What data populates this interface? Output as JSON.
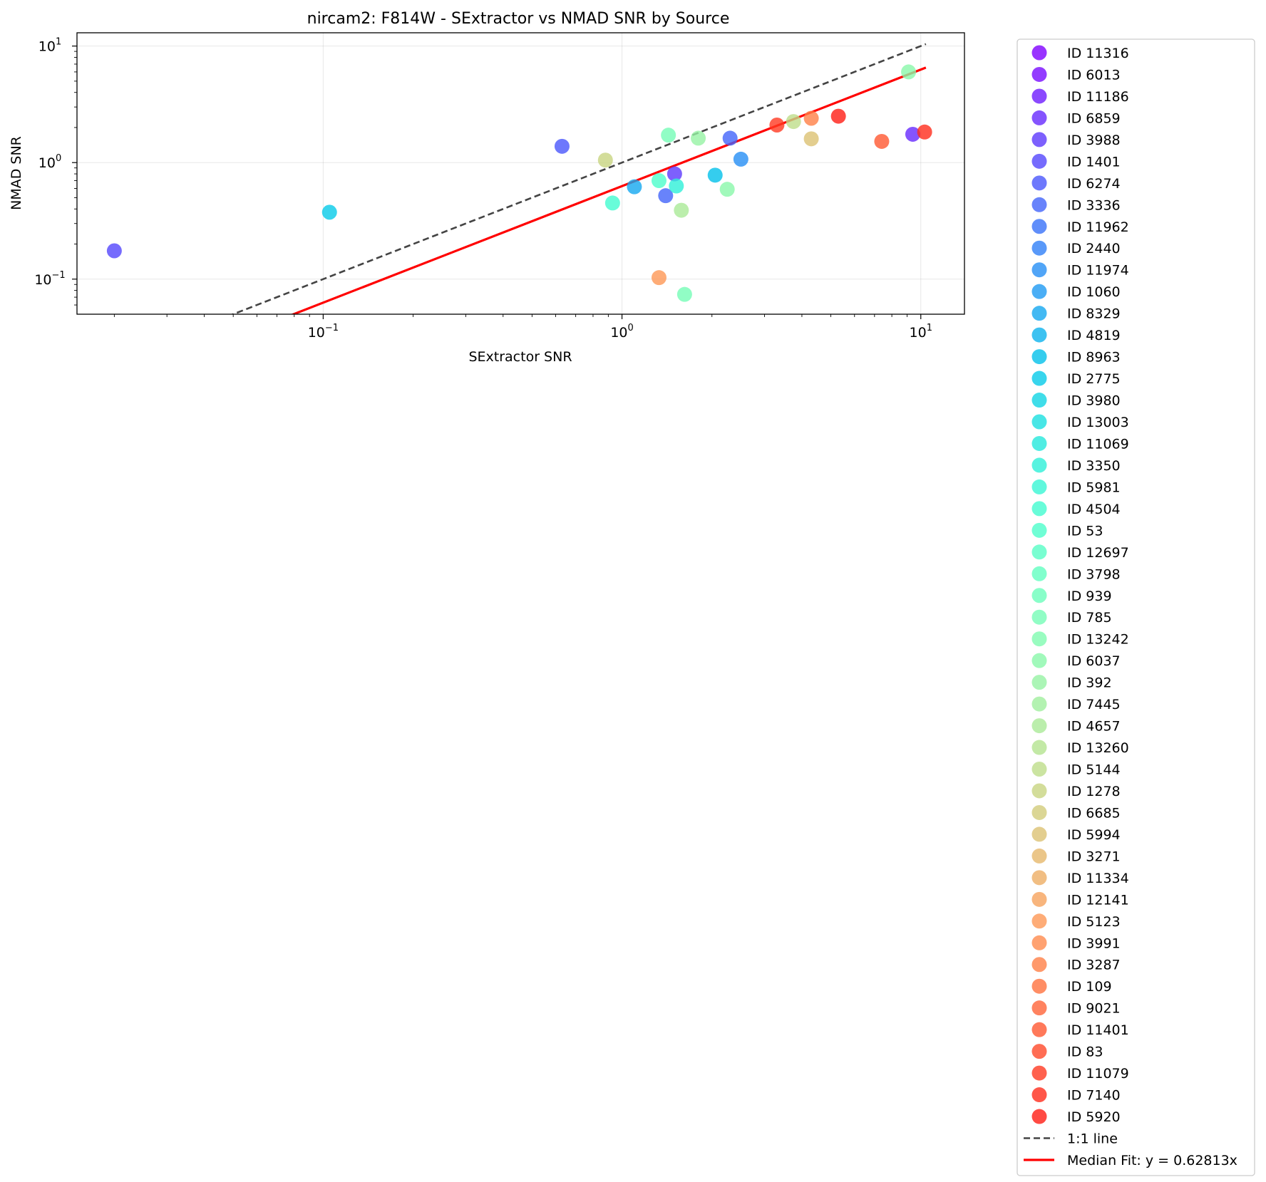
{
  "chart_data": {
    "type": "scatter",
    "title": "nircam2: F814W - SExtractor vs NMAD SNR by Source",
    "xlabel": "SExtractor SNR",
    "ylabel": "NMAD SNR",
    "xscale": "log",
    "yscale": "log",
    "xlim": [
      0.015,
      14
    ],
    "ylim": [
      0.05,
      13
    ],
    "x_ticks": [
      {
        "value": 0.1,
        "base": "10",
        "exp": "−1"
      },
      {
        "value": 1,
        "base": "10",
        "exp": "0"
      },
      {
        "value": 10,
        "base": "10",
        "exp": "1"
      }
    ],
    "y_ticks": [
      {
        "value": 0.1,
        "base": "10",
        "exp": "−1"
      },
      {
        "value": 1,
        "base": "10",
        "exp": "0"
      },
      {
        "value": 10,
        "base": "10",
        "exp": "1"
      }
    ],
    "grid": true,
    "legend_position": "outside-right",
    "series": [
      {
        "name": "ID 11316",
        "color": "#8000ff",
        "points": []
      },
      {
        "name": "ID 6013",
        "color": "#780bff",
        "points": []
      },
      {
        "name": "ID 11186",
        "color": "#6e1bfe",
        "points": []
      },
      {
        "name": "ID 6859",
        "color": "#6629fe",
        "points": [
          [
            9.4,
            1.75
          ]
        ]
      },
      {
        "name": "ID 3988",
        "color": "#5c38fd",
        "points": [
          [
            1.5,
            0.8
          ]
        ]
      },
      {
        "name": "ID 1401",
        "color": "#5446fd",
        "points": [
          [
            0.02,
            0.175
          ]
        ]
      },
      {
        "name": "ID 6274",
        "color": "#4a56fb",
        "points": [
          [
            0.63,
            1.38
          ]
        ]
      },
      {
        "name": "ID 3336",
        "color": "#4264fa",
        "points": [
          [
            2.3,
            1.62
          ],
          [
            1.4,
            0.52
          ]
        ]
      },
      {
        "name": "ID 11962",
        "color": "#3872f9",
        "points": []
      },
      {
        "name": "ID 2440",
        "color": "#3080f7",
        "points": []
      },
      {
        "name": "ID 11974",
        "color": "#268ef5",
        "points": [
          [
            2.5,
            1.07
          ]
        ]
      },
      {
        "name": "ID 1060",
        "color": "#1e9af3",
        "points": []
      },
      {
        "name": "ID 8329",
        "color": "#14a7f0",
        "points": [
          [
            1.1,
            0.62
          ]
        ]
      },
      {
        "name": "ID 4819",
        "color": "#0cb3ee",
        "points": []
      },
      {
        "name": "ID 8963",
        "color": "#02c0ea",
        "points": [
          [
            2.05,
            0.78
          ]
        ]
      },
      {
        "name": "ID 2775",
        "color": "#06cbe8",
        "points": [
          [
            0.105,
            0.375
          ]
        ]
      },
      {
        "name": "ID 3980",
        "color": "#10d5e4",
        "points": []
      },
      {
        "name": "ID 13003",
        "color": "#1ae0e0",
        "points": []
      },
      {
        "name": "ID 11069",
        "color": "#24e8dc",
        "points": []
      },
      {
        "name": "ID 3350",
        "color": "#2ef0d8",
        "points": [
          [
            1.52,
            0.63
          ]
        ]
      },
      {
        "name": "ID 5981",
        "color": "#38f6d4",
        "points": []
      },
      {
        "name": "ID 4504",
        "color": "#42fbcf",
        "points": [
          [
            0.93,
            0.45
          ]
        ]
      },
      {
        "name": "ID 53",
        "color": "#4cfecb",
        "points": [
          [
            1.33,
            0.7
          ]
        ]
      },
      {
        "name": "ID 12697",
        "color": "#58fec5",
        "points": []
      },
      {
        "name": "ID 3798",
        "color": "#62ffc1",
        "points": []
      },
      {
        "name": "ID 939",
        "color": "#6cfebb",
        "points": []
      },
      {
        "name": "ID 785",
        "color": "#76fdb6",
        "points": [
          [
            1.43,
            1.72
          ],
          [
            1.62,
            0.074
          ]
        ]
      },
      {
        "name": "ID 13242",
        "color": "#80fbb0",
        "points": []
      },
      {
        "name": "ID 6037",
        "color": "#8af8aa",
        "points": [
          [
            2.25,
            0.59
          ],
          [
            9.1,
            6.0
          ]
        ]
      },
      {
        "name": "ID 392",
        "color": "#96f3a4",
        "points": [
          [
            1.8,
            1.62
          ]
        ]
      },
      {
        "name": "ID 7445",
        "color": "#a0ef9e",
        "points": []
      },
      {
        "name": "ID 4657",
        "color": "#aaea97",
        "points": [
          [
            1.58,
            0.39
          ]
        ]
      },
      {
        "name": "ID 13260",
        "color": "#b4e490",
        "points": []
      },
      {
        "name": "ID 5144",
        "color": "#bedd89",
        "points": [
          [
            3.75,
            2.25
          ]
        ]
      },
      {
        "name": "ID 1278",
        "color": "#c8d581",
        "points": [
          [
            0.88,
            1.05
          ]
        ]
      },
      {
        "name": "ID 6685",
        "color": "#d2cc7a",
        "points": []
      },
      {
        "name": "ID 5994",
        "color": "#dcc273",
        "points": [
          [
            4.3,
            1.6
          ]
        ]
      },
      {
        "name": "ID 3271",
        "color": "#e6b86b",
        "points": []
      },
      {
        "name": "ID 11334",
        "color": "#eeae64",
        "points": []
      },
      {
        "name": "ID 12141",
        "color": "#f6a35c",
        "points": []
      },
      {
        "name": "ID 5123",
        "color": "#fe9755",
        "points": [
          [
            1.33,
            0.103
          ]
        ]
      },
      {
        "name": "ID 3991",
        "color": "#ff8b4d",
        "points": []
      },
      {
        "name": "ID 3287",
        "color": "#ff7f46",
        "points": [
          [
            4.3,
            2.4
          ]
        ]
      },
      {
        "name": "ID 109",
        "color": "#ff723f",
        "points": []
      },
      {
        "name": "ID 9021",
        "color": "#ff6438",
        "points": []
      },
      {
        "name": "ID 11401",
        "color": "#ff5731",
        "points": [
          [
            7.4,
            1.52
          ]
        ]
      },
      {
        "name": "ID 83",
        "color": "#ff4929",
        "points": []
      },
      {
        "name": "ID 11079",
        "color": "#ff3a22",
        "points": [
          [
            3.3,
            2.1
          ]
        ]
      },
      {
        "name": "ID 7140",
        "color": "#ff2c1b",
        "points": [
          [
            10.3,
            1.83
          ]
        ]
      },
      {
        "name": "ID 5920",
        "color": "#ff1d14",
        "points": [
          [
            5.3,
            2.5
          ]
        ]
      }
    ],
    "lines": [
      {
        "name": "1:1 line",
        "color": "#444444",
        "style": "dashed",
        "slope": 1.0
      },
      {
        "name": "Median Fit: y = 0.62813x",
        "color": "#ff0000",
        "style": "solid",
        "slope": 0.62813
      }
    ],
    "point_alpha": 0.8
  }
}
